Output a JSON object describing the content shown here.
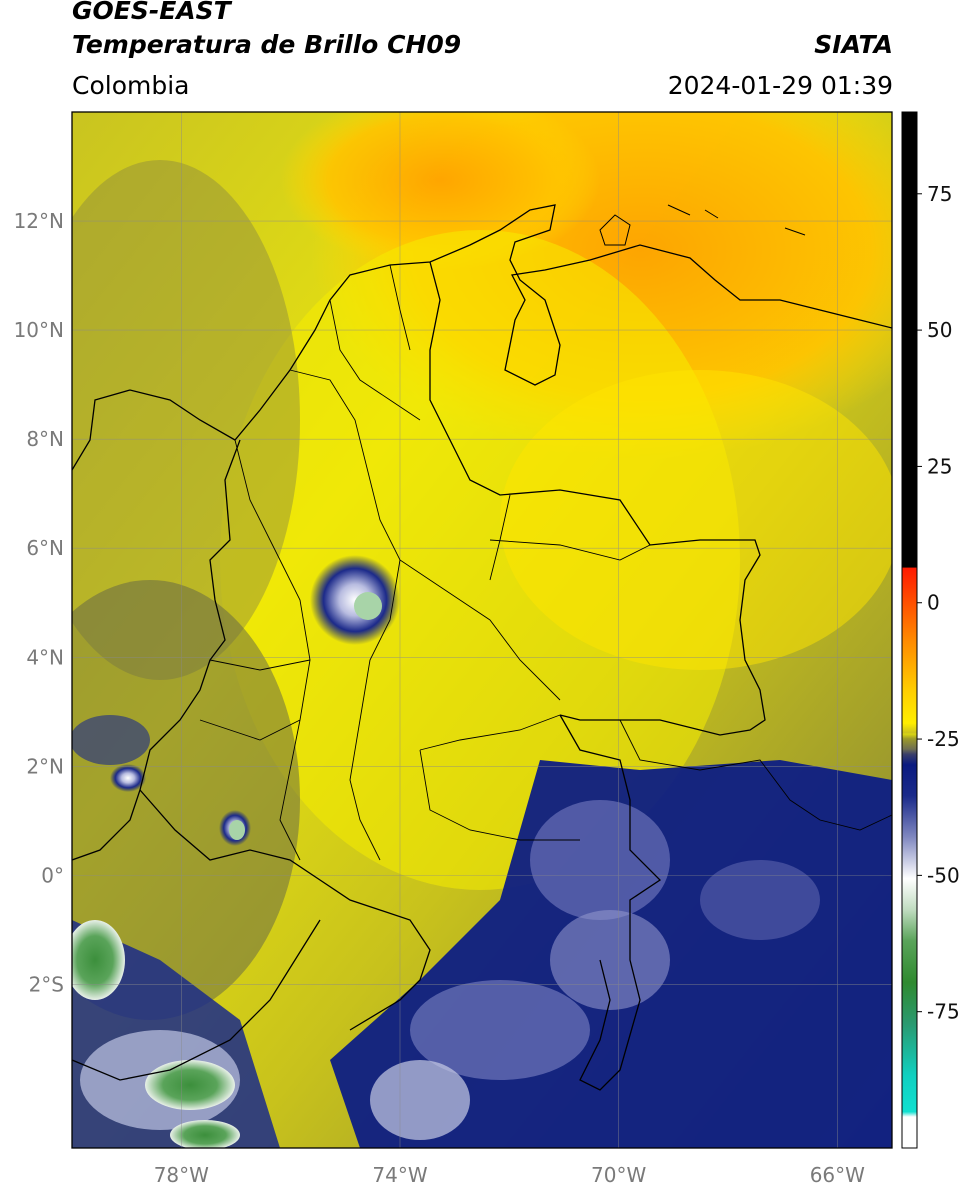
{
  "header": {
    "satellite": "GOES-EAST",
    "product": "Temperatura de Brillo CH09",
    "region": "Colombia",
    "agency": "SIATA",
    "timestamp": "2024-01-29 01:39"
  },
  "map": {
    "lon_range": [
      -80,
      -65
    ],
    "lat_range": [
      -5,
      14
    ],
    "lat_ticks": [
      {
        "value": 12,
        "label": "12°N"
      },
      {
        "value": 10,
        "label": "10°N"
      },
      {
        "value": 8,
        "label": "8°N"
      },
      {
        "value": 6,
        "label": "6°N"
      },
      {
        "value": 4,
        "label": "4°N"
      },
      {
        "value": 2,
        "label": "2°N"
      },
      {
        "value": 0,
        "label": "0°"
      },
      {
        "value": -2,
        "label": "2°S"
      }
    ],
    "lon_ticks": [
      {
        "value": -78,
        "label": "78°W"
      },
      {
        "value": -74,
        "label": "74°W"
      },
      {
        "value": -70,
        "label": "70°W"
      },
      {
        "value": -66,
        "label": "66°W"
      }
    ],
    "gridlines": true
  },
  "colorbar": {
    "range": [
      -100,
      90
    ],
    "ticks": [
      {
        "value": 75,
        "label": "75"
      },
      {
        "value": 50,
        "label": "50"
      },
      {
        "value": 25,
        "label": "25"
      },
      {
        "value": 0,
        "label": "0"
      },
      {
        "value": -25,
        "label": "-25"
      },
      {
        "value": -50,
        "label": "-50"
      },
      {
        "value": -75,
        "label": "-75"
      }
    ],
    "colors": {
      "black": "#000000",
      "red": "#ff1a00",
      "orange": "#ff9a00",
      "yellow": "#ffee00",
      "olive": "#b8b520",
      "gray": "#6e6e52",
      "navy": "#0a1a80",
      "white": "#ffffff",
      "green": "#2f8a2f",
      "cyan": "#10e0d0"
    }
  }
}
